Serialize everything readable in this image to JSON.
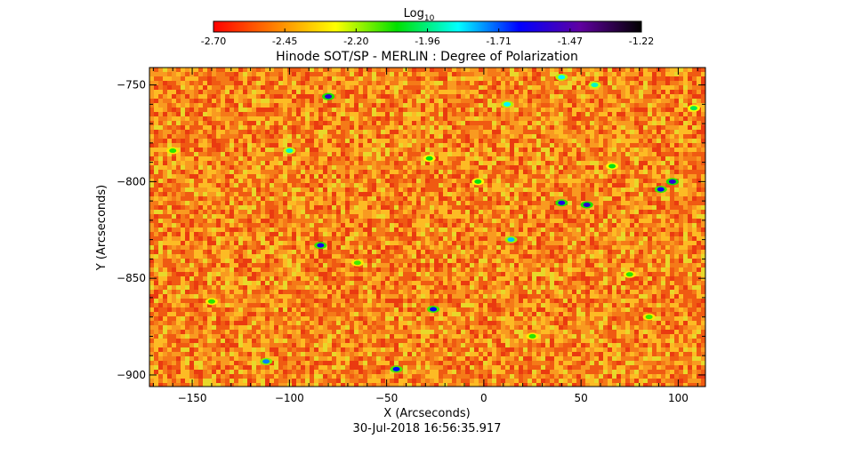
{
  "chart_data": {
    "type": "heatmap",
    "title": "Hinode SOT/SP - MERLIN : Degree of Polarization",
    "xlabel": "X (Arcseconds)",
    "ylabel": "Y (Arcseconds)",
    "xlim": [
      -172,
      114
    ],
    "ylim": [
      -906,
      -741
    ],
    "x_ticks": [
      -150,
      -100,
      -50,
      0,
      50,
      100
    ],
    "y_ticks": [
      -750,
      -800,
      -850,
      -900
    ],
    "timestamp": "30-Jul-2018 16:56:35.917",
    "colorbar": {
      "label_base": "Log",
      "label_sub": "10",
      "scale": "log10",
      "range": [
        -2.7,
        -1.22
      ],
      "ticks": [
        "-2.70",
        "-2.45",
        "-2.20",
        "-1.96",
        "-1.71",
        "-1.47",
        "-1.22"
      ],
      "colormap": [
        "#ff0000",
        "#ff8000",
        "#ffff00",
        "#00e000",
        "#00ffff",
        "#0000ff",
        "#6000a0",
        "#000000"
      ]
    },
    "field": {
      "background_colors": [
        "#ea3a10",
        "#f05a12",
        "#f57a18",
        "#f99a20",
        "#fdbb24",
        "#e8d82a"
      ],
      "features": [
        {
          "x": -80,
          "y": -756,
          "v": -1.55
        },
        {
          "x": -84,
          "y": -833,
          "v": -1.6
        },
        {
          "x": -26,
          "y": -866,
          "v": -1.62
        },
        {
          "x": 40,
          "y": -811,
          "v": -1.58
        },
        {
          "x": 53,
          "y": -812,
          "v": -1.55
        },
        {
          "x": 97,
          "y": -800,
          "v": -1.55
        },
        {
          "x": 91,
          "y": -804,
          "v": -1.62
        },
        {
          "x": -45,
          "y": -897,
          "v": -1.65
        },
        {
          "x": -112,
          "y": -893,
          "v": -1.75
        },
        {
          "x": 12,
          "y": -760,
          "v": -1.85
        },
        {
          "x": 40,
          "y": -746,
          "v": -1.85
        },
        {
          "x": 14,
          "y": -830,
          "v": -1.8
        },
        {
          "x": -100,
          "y": -784,
          "v": -1.9
        },
        {
          "x": 57,
          "y": -750,
          "v": -1.9
        },
        {
          "x": -3,
          "y": -800,
          "v": -2.05
        },
        {
          "x": -28,
          "y": -788,
          "v": -2.05
        },
        {
          "x": 25,
          "y": -880,
          "v": -2.1
        },
        {
          "x": 75,
          "y": -848,
          "v": -2.1
        },
        {
          "x": -140,
          "y": -862,
          "v": -2.1
        },
        {
          "x": 108,
          "y": -762,
          "v": -2.0
        },
        {
          "x": -65,
          "y": -842,
          "v": -2.12
        },
        {
          "x": 66,
          "y": -792,
          "v": -2.05
        },
        {
          "x": -160,
          "y": -784,
          "v": -2.1
        },
        {
          "x": 85,
          "y": -870,
          "v": -2.12
        }
      ]
    }
  }
}
